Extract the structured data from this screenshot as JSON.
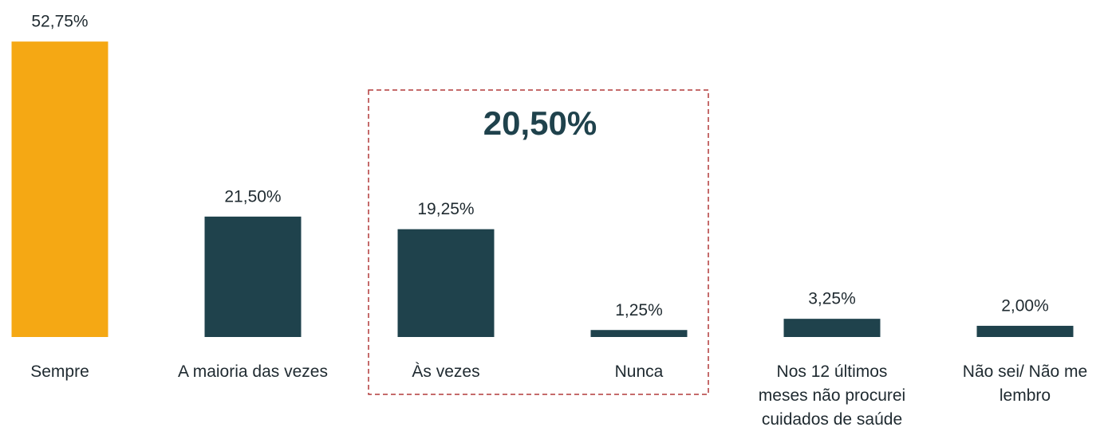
{
  "chart_data": {
    "type": "bar",
    "categories": [
      "Sempre",
      "A maioria das vezes",
      "Às vezes",
      "Nunca",
      "Nos 12 últimos meses não procurei cuidados de saúde",
      "Não sei/ Não me lembro"
    ],
    "values": [
      52.75,
      21.5,
      19.25,
      1.25,
      3.25,
      2.0
    ],
    "value_labels": [
      "52,75%",
      "21,50%",
      "19,25%",
      "1,25%",
      "3,25%",
      "2,00%"
    ],
    "colors": [
      "#F5A814",
      "#1F424C",
      "#1F424C",
      "#1F424C",
      "#1F424C",
      "#1F424C"
    ],
    "annotation": "20,50%"
  }
}
